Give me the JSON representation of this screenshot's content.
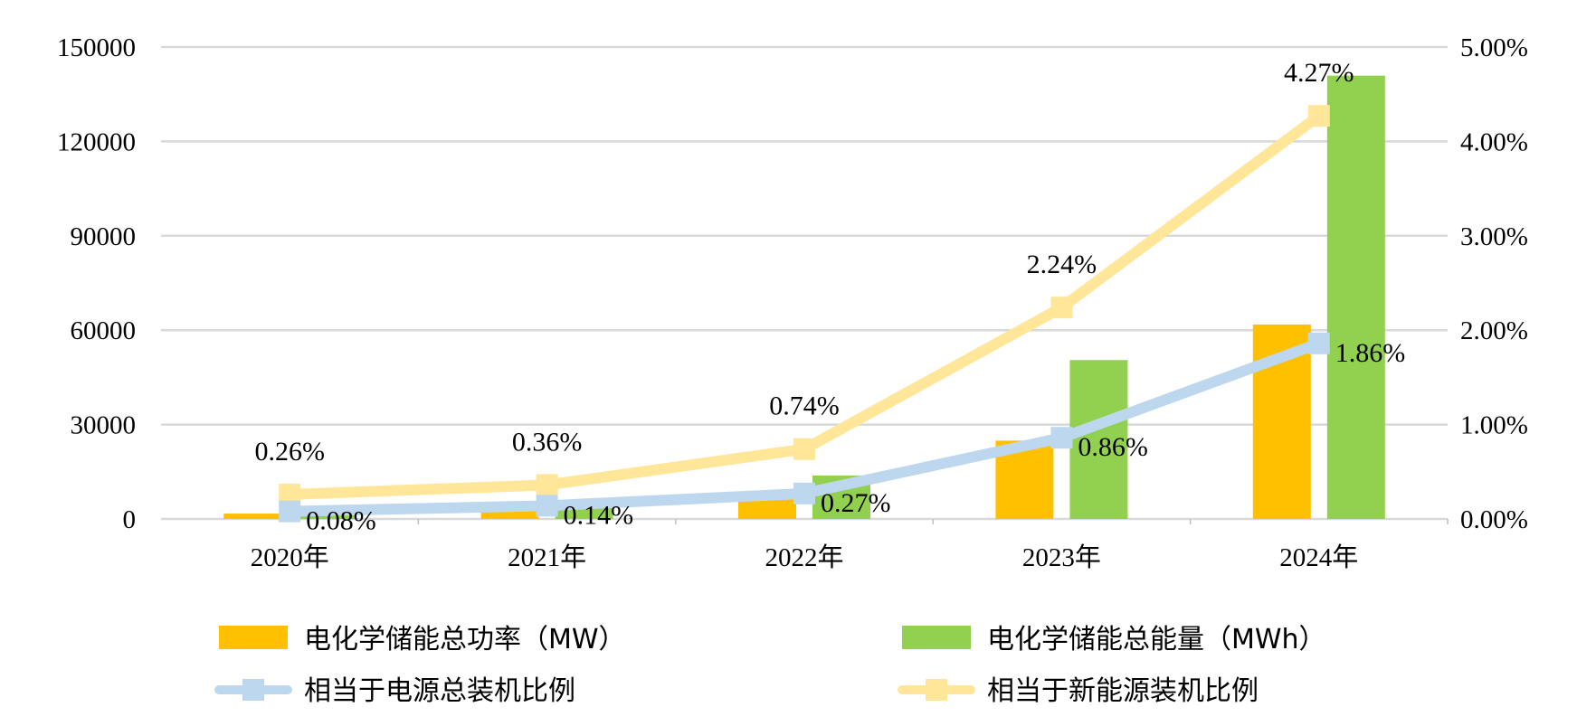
{
  "chart_data": {
    "type": "bar+line",
    "categories": [
      "2020年",
      "2021年",
      "2022年",
      "2023年",
      "2024年"
    ],
    "bar_series": [
      {
        "name": "电化学储能总功率（MW）",
        "color": "#FFC000",
        "values": [
          1700,
          2700,
          6600,
          24900,
          61800
        ]
      },
      {
        "name": "电化学储能总能量（MWh）",
        "color": "#92D050",
        "values": [
          1500,
          5900,
          13800,
          50500,
          140900
        ]
      }
    ],
    "line_series": [
      {
        "name": "相当于电源总装机比例",
        "color": "#BDD7EE",
        "values": [
          0.08,
          0.14,
          0.27,
          0.86,
          1.86
        ],
        "labels": [
          "0.08%",
          "0.14%",
          "0.27%",
          "0.86%",
          "1.86%"
        ]
      },
      {
        "name": "相当于新能源装机比例",
        "color": "#FFE699",
        "values": [
          0.26,
          0.36,
          0.74,
          2.24,
          4.27
        ],
        "labels": [
          "0.26%",
          "0.36%",
          "0.74%",
          "2.24%",
          "4.27%"
        ]
      }
    ],
    "y_left": {
      "range": [
        0,
        150000
      ],
      "ticks": [
        "0",
        "30000",
        "60000",
        "90000",
        "120000",
        "150000"
      ]
    },
    "y_right": {
      "range": [
        0,
        5
      ],
      "ticks": [
        "0.00%",
        "1.00%",
        "2.00%",
        "3.00%",
        "4.00%",
        "5.00%"
      ]
    },
    "grid": true,
    "legend_position": "bottom",
    "gridline_color": "#D9D9D9"
  }
}
